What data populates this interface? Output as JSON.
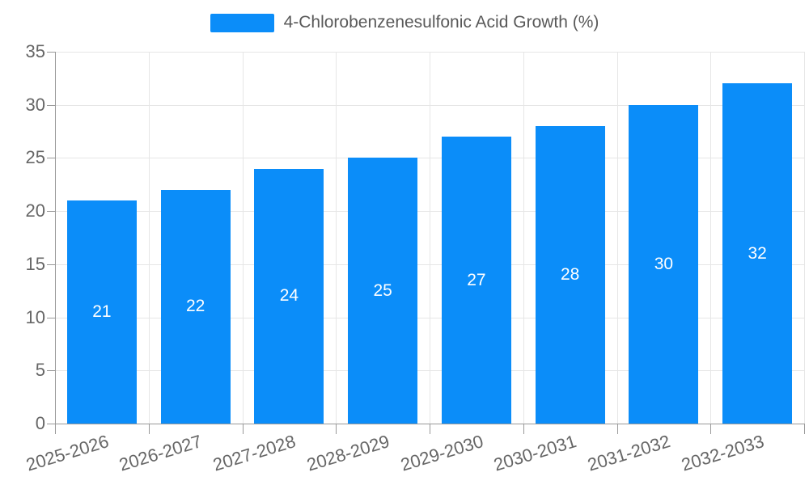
{
  "legend": {
    "label": "4-Chlorobenzenesulfonic Acid Growth (%)",
    "swatch_color": "#0b8df9"
  },
  "chart_data": {
    "type": "bar",
    "title": "",
    "xlabel": "",
    "ylabel": "",
    "categories": [
      "2025-2026",
      "2026-2027",
      "2027-2028",
      "2028-2029",
      "2029-2030",
      "2030-2031",
      "2031-2032",
      "2032-2033"
    ],
    "series": [
      {
        "name": "4-Chlorobenzenesulfonic Acid Growth (%)",
        "values": [
          21,
          22,
          24,
          25,
          27,
          28,
          30,
          32
        ]
      }
    ],
    "value_labels_shown": true,
    "value_label_position": "inside-center",
    "ylim": [
      0,
      35
    ],
    "yticks": [
      0,
      5,
      10,
      15,
      20,
      25,
      30,
      35
    ],
    "grid": true,
    "legend_position": "top-center",
    "colors": {
      "bar": "#0b8df9",
      "value_label": "#ffffff",
      "gridline": "#e6e6e6",
      "axis_line": "#999999",
      "tick_label": "#666666"
    }
  }
}
